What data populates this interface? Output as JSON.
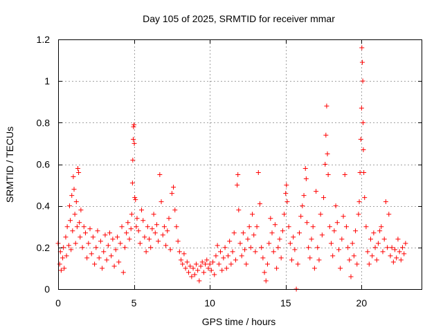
{
  "chart_data": {
    "type": "scatter",
    "title": "Day 105 of 2025, SRMTID for receiver mmar",
    "xlabel": "GPS time / hours",
    "ylabel": "SRMTID / TECUs",
    "xlim": [
      0,
      24
    ],
    "ylim": [
      0,
      1.2
    ],
    "xticks": [
      0,
      5,
      10,
      15,
      20
    ],
    "xtick_labels": [
      "0",
      "5",
      "10",
      "15",
      "20"
    ],
    "yticks": [
      0,
      0.2,
      0.4,
      0.6,
      0.8,
      1,
      1.2
    ],
    "ytick_labels": [
      "0",
      "0.2",
      "0.4",
      "0.6",
      "0.8",
      "1",
      "1.2"
    ],
    "grid": true,
    "marker": "+",
    "series": [
      {
        "name": "mmar",
        "color": "#ff0000",
        "points": [
          [
            0.0,
            0.22
          ],
          [
            0.1,
            0.12
          ],
          [
            0.15,
            0.18
          ],
          [
            0.2,
            0.09
          ],
          [
            0.3,
            0.15
          ],
          [
            0.35,
            0.2
          ],
          [
            0.4,
            0.1
          ],
          [
            0.5,
            0.25
          ],
          [
            0.55,
            0.16
          ],
          [
            0.6,
            0.3
          ],
          [
            0.7,
            0.21
          ],
          [
            0.75,
            0.4
          ],
          [
            0.8,
            0.33
          ],
          [
            0.85,
            0.19
          ],
          [
            0.9,
            0.45
          ],
          [
            0.95,
            0.28
          ],
          [
            1.0,
            0.54
          ],
          [
            1.05,
            0.48
          ],
          [
            1.1,
            0.36
          ],
          [
            1.15,
            0.22
          ],
          [
            1.2,
            0.42
          ],
          [
            1.25,
            0.3
          ],
          [
            1.3,
            0.58
          ],
          [
            1.35,
            0.56
          ],
          [
            1.4,
            0.32
          ],
          [
            1.45,
            0.25
          ],
          [
            1.5,
            0.38
          ],
          [
            1.6,
            0.2
          ],
          [
            1.7,
            0.3
          ],
          [
            1.8,
            0.27
          ],
          [
            1.9,
            0.15
          ],
          [
            2.0,
            0.22
          ],
          [
            2.1,
            0.29
          ],
          [
            2.2,
            0.17
          ],
          [
            2.3,
            0.25
          ],
          [
            2.4,
            0.12
          ],
          [
            2.5,
            0.2
          ],
          [
            2.6,
            0.28
          ],
          [
            2.7,
            0.15
          ],
          [
            2.8,
            0.23
          ],
          [
            2.9,
            0.1
          ],
          [
            3.0,
            0.18
          ],
          [
            3.1,
            0.26
          ],
          [
            3.2,
            0.14
          ],
          [
            3.3,
            0.21
          ],
          [
            3.4,
            0.27
          ],
          [
            3.5,
            0.16
          ],
          [
            3.6,
            0.24
          ],
          [
            3.7,
            0.11
          ],
          [
            3.8,
            0.19
          ],
          [
            3.9,
            0.25
          ],
          [
            4.0,
            0.13
          ],
          [
            4.1,
            0.22
          ],
          [
            4.2,
            0.3
          ],
          [
            4.3,
            0.08
          ],
          [
            4.4,
            0.2
          ],
          [
            4.5,
            0.27
          ],
          [
            4.6,
            0.32
          ],
          [
            4.7,
            0.24
          ],
          [
            4.8,
            0.29
          ],
          [
            4.85,
            0.36
          ],
          [
            4.9,
            0.51
          ],
          [
            4.92,
            0.62
          ],
          [
            4.95,
            0.72
          ],
          [
            4.97,
            0.78
          ],
          [
            5.0,
            0.79
          ],
          [
            5.02,
            0.7
          ],
          [
            5.05,
            0.44
          ],
          [
            5.1,
            0.43
          ],
          [
            5.15,
            0.3
          ],
          [
            5.2,
            0.34
          ],
          [
            5.3,
            0.28
          ],
          [
            5.4,
            0.22
          ],
          [
            5.5,
            0.38
          ],
          [
            5.6,
            0.33
          ],
          [
            5.7,
            0.25
          ],
          [
            5.8,
            0.18
          ],
          [
            5.9,
            0.3
          ],
          [
            6.0,
            0.24
          ],
          [
            6.1,
            0.2
          ],
          [
            6.2,
            0.29
          ],
          [
            6.3,
            0.36
          ],
          [
            6.4,
            0.27
          ],
          [
            6.5,
            0.31
          ],
          [
            6.6,
            0.23
          ],
          [
            6.7,
            0.55
          ],
          [
            6.8,
            0.42
          ],
          [
            6.9,
            0.26
          ],
          [
            7.0,
            0.3
          ],
          [
            7.1,
            0.21
          ],
          [
            7.2,
            0.28
          ],
          [
            7.3,
            0.34
          ],
          [
            7.4,
            0.19
          ],
          [
            7.5,
            0.46
          ],
          [
            7.6,
            0.49
          ],
          [
            7.7,
            0.38
          ],
          [
            7.8,
            0.3
          ],
          [
            7.9,
            0.23
          ],
          [
            8.0,
            0.18
          ],
          [
            8.1,
            0.14
          ],
          [
            8.2,
            0.12
          ],
          [
            8.3,
            0.17
          ],
          [
            8.4,
            0.1
          ],
          [
            8.5,
            0.13
          ],
          [
            8.6,
            0.08
          ],
          [
            8.7,
            0.11
          ],
          [
            8.8,
            0.06
          ],
          [
            8.9,
            0.1
          ],
          [
            9.0,
            0.07
          ],
          [
            9.1,
            0.12
          ],
          [
            9.2,
            0.09
          ],
          [
            9.3,
            0.04
          ],
          [
            9.4,
            0.11
          ],
          [
            9.5,
            0.13
          ],
          [
            9.6,
            0.08
          ],
          [
            9.7,
            0.12
          ],
          [
            9.8,
            0.14
          ],
          [
            9.9,
            0.1
          ],
          [
            10.0,
            0.12
          ],
          [
            10.1,
            0.09
          ],
          [
            10.2,
            0.13
          ],
          [
            10.3,
            0.07
          ],
          [
            10.4,
            0.16
          ],
          [
            10.5,
            0.21
          ],
          [
            10.6,
            0.12
          ],
          [
            10.7,
            0.18
          ],
          [
            10.8,
            0.09
          ],
          [
            10.9,
            0.15
          ],
          [
            11.0,
            0.2
          ],
          [
            11.1,
            0.1
          ],
          [
            11.2,
            0.16
          ],
          [
            11.3,
            0.23
          ],
          [
            11.4,
            0.12
          ],
          [
            11.5,
            0.18
          ],
          [
            11.6,
            0.27
          ],
          [
            11.7,
            0.14
          ],
          [
            11.8,
            0.5
          ],
          [
            11.85,
            0.55
          ],
          [
            11.9,
            0.38
          ],
          [
            12.0,
            0.22
          ],
          [
            12.1,
            0.16
          ],
          [
            12.2,
            0.27
          ],
          [
            12.3,
            0.19
          ],
          [
            12.4,
            0.12
          ],
          [
            12.5,
            0.24
          ],
          [
            12.6,
            0.3
          ],
          [
            12.7,
            0.2
          ],
          [
            12.8,
            0.36
          ],
          [
            12.9,
            0.26
          ],
          [
            13.0,
            0.18
          ],
          [
            13.1,
            0.3
          ],
          [
            13.2,
            0.56
          ],
          [
            13.3,
            0.41
          ],
          [
            13.4,
            0.2
          ],
          [
            13.5,
            0.15
          ],
          [
            13.6,
            0.08
          ],
          [
            13.7,
            0.04
          ],
          [
            13.8,
            0.12
          ],
          [
            13.9,
            0.22
          ],
          [
            14.0,
            0.34
          ],
          [
            14.1,
            0.27
          ],
          [
            14.2,
            0.18
          ],
          [
            14.3,
            0.31
          ],
          [
            14.4,
            0.1
          ],
          [
            14.5,
            0.2
          ],
          [
            14.6,
            0.24
          ],
          [
            14.7,
            0.15
          ],
          [
            14.8,
            0.28
          ],
          [
            14.9,
            0.36
          ],
          [
            15.0,
            0.46
          ],
          [
            15.05,
            0.5
          ],
          [
            15.1,
            0.42
          ],
          [
            15.2,
            0.3
          ],
          [
            15.3,
            0.22
          ],
          [
            15.4,
            0.14
          ],
          [
            15.5,
            0.25
          ],
          [
            15.6,
            0.19
          ],
          [
            15.7,
            0.0
          ],
          [
            15.8,
            0.12
          ],
          [
            15.9,
            0.27
          ],
          [
            16.0,
            0.35
          ],
          [
            16.1,
            0.4
          ],
          [
            16.2,
            0.45
          ],
          [
            16.3,
            0.58
          ],
          [
            16.35,
            0.53
          ],
          [
            16.4,
            0.32
          ],
          [
            16.5,
            0.2
          ],
          [
            16.6,
            0.15
          ],
          [
            16.7,
            0.24
          ],
          [
            16.8,
            0.3
          ],
          [
            16.9,
            0.1
          ],
          [
            17.0,
            0.47
          ],
          [
            17.1,
            0.2
          ],
          [
            17.2,
            0.14
          ],
          [
            17.3,
            0.36
          ],
          [
            17.4,
            0.26
          ],
          [
            17.5,
            0.44
          ],
          [
            17.6,
            0.6
          ],
          [
            17.65,
            0.74
          ],
          [
            17.7,
            0.88
          ],
          [
            17.75,
            0.65
          ],
          [
            17.8,
            0.55
          ],
          [
            17.9,
            0.3
          ],
          [
            18.0,
            0.22
          ],
          [
            18.1,
            0.16
          ],
          [
            18.2,
            0.28
          ],
          [
            18.3,
            0.4
          ],
          [
            18.4,
            0.32
          ],
          [
            18.5,
            0.19
          ],
          [
            18.6,
            0.1
          ],
          [
            18.7,
            0.24
          ],
          [
            18.8,
            0.35
          ],
          [
            18.9,
            0.55
          ],
          [
            19.0,
            0.3
          ],
          [
            19.1,
            0.2
          ],
          [
            19.2,
            0.14
          ],
          [
            19.3,
            0.06
          ],
          [
            19.4,
            0.22
          ],
          [
            19.5,
            0.16
          ],
          [
            19.6,
            0.28
          ],
          [
            19.7,
            0.12
          ],
          [
            19.8,
            0.36
          ],
          [
            19.85,
            0.42
          ],
          [
            19.9,
            0.56
          ],
          [
            19.95,
            0.72
          ],
          [
            20.0,
            0.87
          ],
          [
            20.02,
            1.16
          ],
          [
            20.05,
            1.09
          ],
          [
            20.08,
            1.0
          ],
          [
            20.1,
            0.8
          ],
          [
            20.12,
            0.67
          ],
          [
            20.15,
            0.56
          ],
          [
            20.2,
            0.44
          ],
          [
            20.3,
            0.3
          ],
          [
            20.4,
            0.18
          ],
          [
            20.5,
            0.12
          ],
          [
            20.6,
            0.24
          ],
          [
            20.7,
            0.16
          ],
          [
            20.8,
            0.27
          ],
          [
            20.9,
            0.2
          ],
          [
            21.0,
            0.14
          ],
          [
            21.1,
            0.22
          ],
          [
            21.2,
            0.28
          ],
          [
            21.3,
            0.3
          ],
          [
            21.4,
            0.18
          ],
          [
            21.5,
            0.24
          ],
          [
            21.6,
            0.42
          ],
          [
            21.7,
            0.2
          ],
          [
            21.8,
            0.36
          ],
          [
            21.9,
            0.16
          ],
          [
            22.0,
            0.2
          ],
          [
            22.1,
            0.13
          ],
          [
            22.2,
            0.19
          ],
          [
            22.3,
            0.15
          ],
          [
            22.4,
            0.24
          ],
          [
            22.5,
            0.18
          ],
          [
            22.6,
            0.14
          ],
          [
            22.7,
            0.2
          ],
          [
            22.8,
            0.17
          ],
          [
            22.9,
            0.22
          ]
        ]
      }
    ]
  }
}
